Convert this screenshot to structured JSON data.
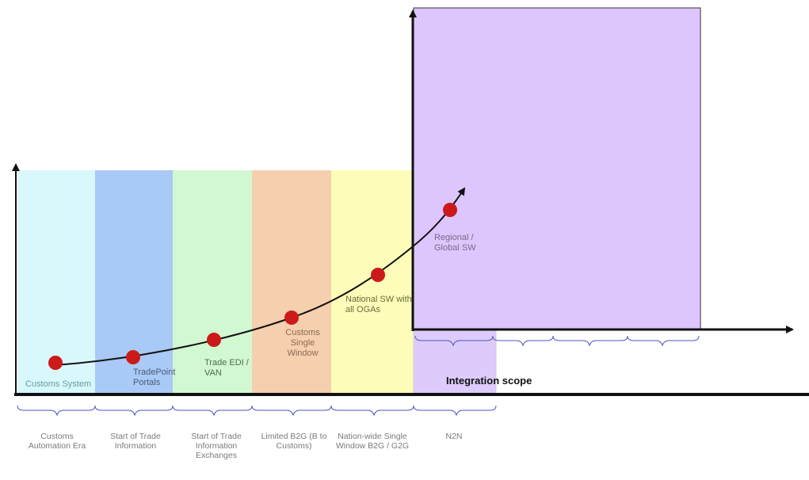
{
  "colors": {
    "era1": "#d8f8fc",
    "era2": "#a9c9f6",
    "era3": "#d2f8d2",
    "era4": "#f6cfaf",
    "era5": "#fdfdb9",
    "era6": "#dccbfb",
    "region": "#ddc6fd",
    "milestone": "#cc1a1a",
    "brace": "#4b57c7",
    "axis": "#111111"
  },
  "milestones": [
    {
      "label": "Customs System",
      "icon": "circle-marker"
    },
    {
      "label": "TradePoint Portals",
      "icon": "circle-marker"
    },
    {
      "label": "Trade EDI / VAN",
      "icon": "circle-marker"
    },
    {
      "label": "Customs Single Window",
      "icon": "circle-marker"
    },
    {
      "label": "National SW with all OGAs",
      "icon": "circle-marker"
    },
    {
      "label": "Regional / Global SW",
      "icon": "circle-marker"
    }
  ],
  "eras": [
    {
      "label": "Customs Automation Era"
    },
    {
      "label": "Start of Trade Information"
    },
    {
      "label": "Start of Trade Information Exchanges"
    },
    {
      "label": "Limited B2G (B to Customs)"
    },
    {
      "label": "Nation-wide Single Window B2G / G2G"
    },
    {
      "label": "N2N"
    }
  ],
  "axis_label": "Integration scope"
}
